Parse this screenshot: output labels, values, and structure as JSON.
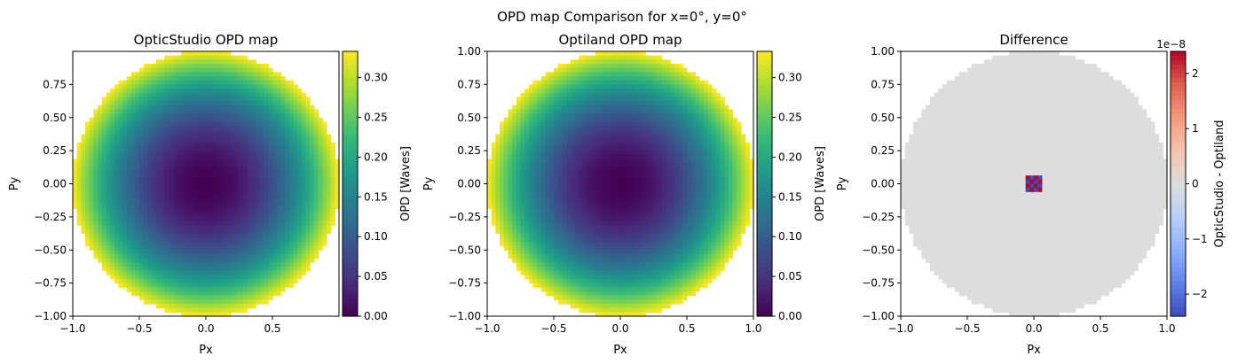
{
  "figure": {
    "suptitle": "OPD map Comparison for x=0°, y=0°"
  },
  "chart_data": [
    {
      "type": "heatmap",
      "title": "OpticStudio OPD map",
      "xlabel": "Px",
      "ylabel": "Py",
      "xlim": [
        -1.0,
        1.0
      ],
      "ylim": [
        -1.0,
        1.0
      ],
      "xticks": [
        -1.0,
        -0.5,
        0.0,
        0.5
      ],
      "xtick_labels": [
        "−1.0",
        "−0.5",
        "0.0",
        "0.5"
      ],
      "yticks": [
        -1.0,
        -0.75,
        -0.5,
        -0.25,
        0.0,
        0.25,
        0.5,
        0.75
      ],
      "ytick_labels": [
        "−1.00",
        "−0.75",
        "−0.50",
        "−0.25",
        "0.00",
        "0.25",
        "0.50",
        "0.75"
      ],
      "colormap": "viridis",
      "field": "defocus: value = 0.333 * r^2 (r <= 1, 128 x 128 grid)",
      "vmin": 0.0,
      "vmax": 0.333,
      "colorbar": {
        "label": "OPD [Waves]",
        "ticks": [
          0.0,
          0.05,
          0.1,
          0.15,
          0.2,
          0.25,
          0.3
        ],
        "tick_labels": [
          "0.00",
          "0.05",
          "0.10",
          "0.15",
          "0.20",
          "0.25",
          "0.30"
        ]
      }
    },
    {
      "type": "heatmap",
      "title": "Optiland OPD map",
      "xlabel": "Px",
      "ylabel": "Py",
      "xlim": [
        -1.0,
        1.0
      ],
      "ylim": [
        -1.0,
        1.0
      ],
      "xticks": [
        -1.0,
        -0.5,
        0.0,
        0.5,
        1.0
      ],
      "xtick_labels": [
        "−1.0",
        "−0.5",
        "0.0",
        "0.5",
        "1.0"
      ],
      "yticks": [
        -1.0,
        -0.75,
        -0.5,
        -0.25,
        0.0,
        0.25,
        0.5,
        0.75,
        1.0
      ],
      "ytick_labels": [
        "−1.00",
        "−0.75",
        "−0.50",
        "−0.25",
        "0.00",
        "0.25",
        "0.50",
        "0.75",
        "1.00"
      ],
      "colormap": "viridis",
      "field": "defocus: value = 0.333 * r^2 (r <= 1, 128 x 128 grid)",
      "vmin": 0.0,
      "vmax": 0.333,
      "colorbar": {
        "label": "OPD [Waves]",
        "ticks": [
          0.0,
          0.05,
          0.1,
          0.15,
          0.2,
          0.25,
          0.3
        ],
        "tick_labels": [
          "0.00",
          "0.05",
          "0.10",
          "0.15",
          "0.20",
          "0.25",
          "0.30"
        ]
      }
    },
    {
      "type": "heatmap",
      "title": "Difference",
      "xlabel": "Px",
      "ylabel": "Py",
      "xlim": [
        -1.0,
        1.0
      ],
      "ylim": [
        -1.0,
        1.0
      ],
      "xticks": [
        -1.0,
        -0.5,
        0.0,
        0.5,
        1.0
      ],
      "xtick_labels": [
        "−1.0",
        "−0.5",
        "0.0",
        "0.5",
        "1.0"
      ],
      "yticks": [
        -1.0,
        -0.75,
        -0.5,
        -0.25,
        0.0,
        0.25,
        0.5,
        0.75,
        1.0
      ],
      "ytick_labels": [
        "−1.00",
        "−0.75",
        "−0.50",
        "−0.25",
        "0.00",
        "0.25",
        "0.50",
        "0.75",
        "1.00"
      ],
      "colormap": "coolwarm",
      "field": "zero everywhere inside the unit disc except a small checkerboard of ±2.4e-8 at the centre",
      "vmin": -2.4e-08,
      "vmax": 2.4e-08,
      "colorbar": {
        "label": "OpticStudio - Optiland",
        "offset_text": "1e−8",
        "ticks": [
          -2e-08,
          -1e-08,
          0,
          1e-08,
          2e-08
        ],
        "tick_labels": [
          "−2",
          "−1",
          "0",
          "1",
          "2"
        ]
      }
    }
  ],
  "colors": {
    "axes_edge": "#000000",
    "background": "#ffffff",
    "diff_neutral": "#dddddd"
  }
}
